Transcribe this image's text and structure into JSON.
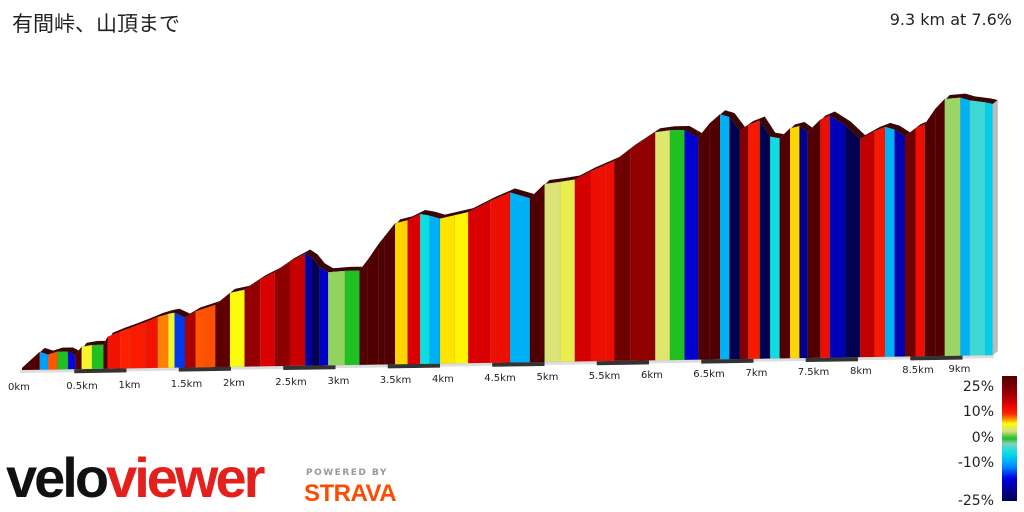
{
  "header": {
    "title": "有間峠、山頂まで",
    "summary": "9.3 km at 7.6%"
  },
  "chart_data": {
    "type": "area",
    "title": "有間峠、山頂まで",
    "xlabel": "",
    "ylabel": "",
    "x_unit": "km",
    "xlim": [
      0,
      9.3
    ],
    "x_ticks": [
      "0km",
      "0.5km",
      "1km",
      "1.5km",
      "2km",
      "2.5km",
      "3km",
      "3.5km",
      "4km",
      "4.5km",
      "5km",
      "5.5km",
      "6km",
      "6.5km",
      "7km",
      "7.5km",
      "8km",
      "8.5km",
      "9km"
    ],
    "grid": false,
    "color_encoding": "gradient %",
    "profile": {
      "distance_km": [
        0,
        0.17,
        0.25,
        0.34,
        0.44,
        0.51,
        0.57,
        0.67,
        0.78,
        0.82,
        0.94,
        1.03,
        1.18,
        1.3,
        1.4,
        1.46,
        1.56,
        1.66,
        1.75,
        1.85,
        1.99,
        2.13,
        2.28,
        2.42,
        2.56,
        2.71,
        2.78,
        2.85,
        2.93,
        3.09,
        3.23,
        3.31,
        3.41,
        3.47,
        3.57,
        3.69,
        3.81,
        3.9,
        4.0,
        4.14,
        4.27,
        4.48,
        4.67,
        4.86,
        5.0,
        5.15,
        5.29,
        5.44,
        5.58,
        5.67,
        5.82,
        6.06,
        6.2,
        6.34,
        6.47,
        6.58,
        6.68,
        6.77,
        6.87,
        6.95,
        7.06,
        7.16,
        7.25,
        7.35,
        7.44,
        7.52,
        7.64,
        7.73,
        7.88,
        8.02,
        8.16,
        8.26,
        8.35,
        8.45,
        8.55,
        8.64,
        8.74,
        8.83,
        8.98,
        9.07,
        9.22,
        9.29
      ],
      "relative_elevation_m": [
        0,
        44,
        36,
        44,
        44,
        33,
        56,
        61,
        61,
        83,
        97,
        106,
        122,
        136,
        144,
        147,
        133,
        150,
        158,
        167,
        200,
        208,
        236,
        256,
        283,
        306,
        292,
        267,
        253,
        256,
        256,
        286,
        328,
        350,
        386,
        394,
        411,
        406,
        397,
        406,
        414,
        444,
        467,
        450,
        489,
        494,
        500,
        522,
        539,
        550,
        583,
        628,
        633,
        633,
        611,
        650,
        675,
        667,
        628,
        644,
        656,
        611,
        606,
        633,
        639,
        622,
        656,
        667,
        639,
        600,
        622,
        633,
        625,
        606,
        628,
        639,
        681,
        708,
        711,
        703,
        697,
        692
      ]
    },
    "legend": {
      "labels": [
        "25%",
        "10%",
        "0%",
        "-10%",
        "-25%"
      ],
      "stops": [
        {
          "grade": -25,
          "color": "#000050"
        },
        {
          "grade": -16,
          "color": "#0000e0"
        },
        {
          "grade": -11,
          "color": "#0090ff"
        },
        {
          "grade": -6,
          "color": "#00e0e8"
        },
        {
          "grade": -2,
          "color": "#80d0c0"
        },
        {
          "grade": 0,
          "color": "#20c020"
        },
        {
          "grade": 3,
          "color": "#d8e088"
        },
        {
          "grade": 6,
          "color": "#ffff00"
        },
        {
          "grade": 8,
          "color": "#ff8000"
        },
        {
          "grade": 10,
          "color": "#ff2000"
        },
        {
          "grade": 14,
          "color": "#dd0000"
        },
        {
          "grade": 18,
          "color": "#990000"
        },
        {
          "grade": 25,
          "color": "#500000"
        }
      ]
    }
  },
  "branding": {
    "logo_velo": "velo",
    "logo_viewer": "viewer",
    "powered_by": "POWERED BY",
    "strava": "STRAVA"
  }
}
